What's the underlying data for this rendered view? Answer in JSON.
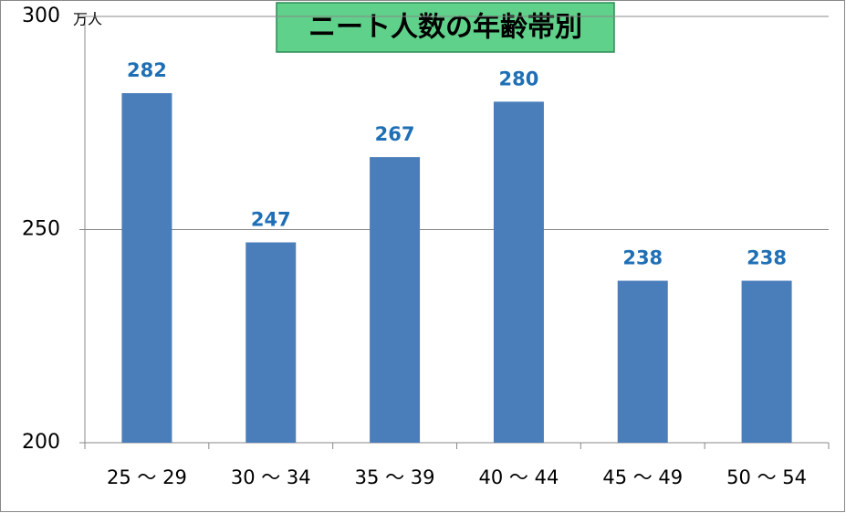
{
  "chart_data": {
    "type": "bar",
    "title": "ニート人数の年齢帯別",
    "y_label": "万人",
    "categories": [
      "25 ～ 29",
      "30 ～ 34",
      "35 ～ 39",
      "40 ～ 44",
      "45 ～ 49",
      "50 ～ 54"
    ],
    "values": [
      282,
      247,
      267,
      280,
      238,
      238
    ],
    "color": "#4a7ebb",
    "ylim": [
      200,
      300
    ],
    "yticks": [
      200,
      250,
      300
    ],
    "grid": true
  }
}
